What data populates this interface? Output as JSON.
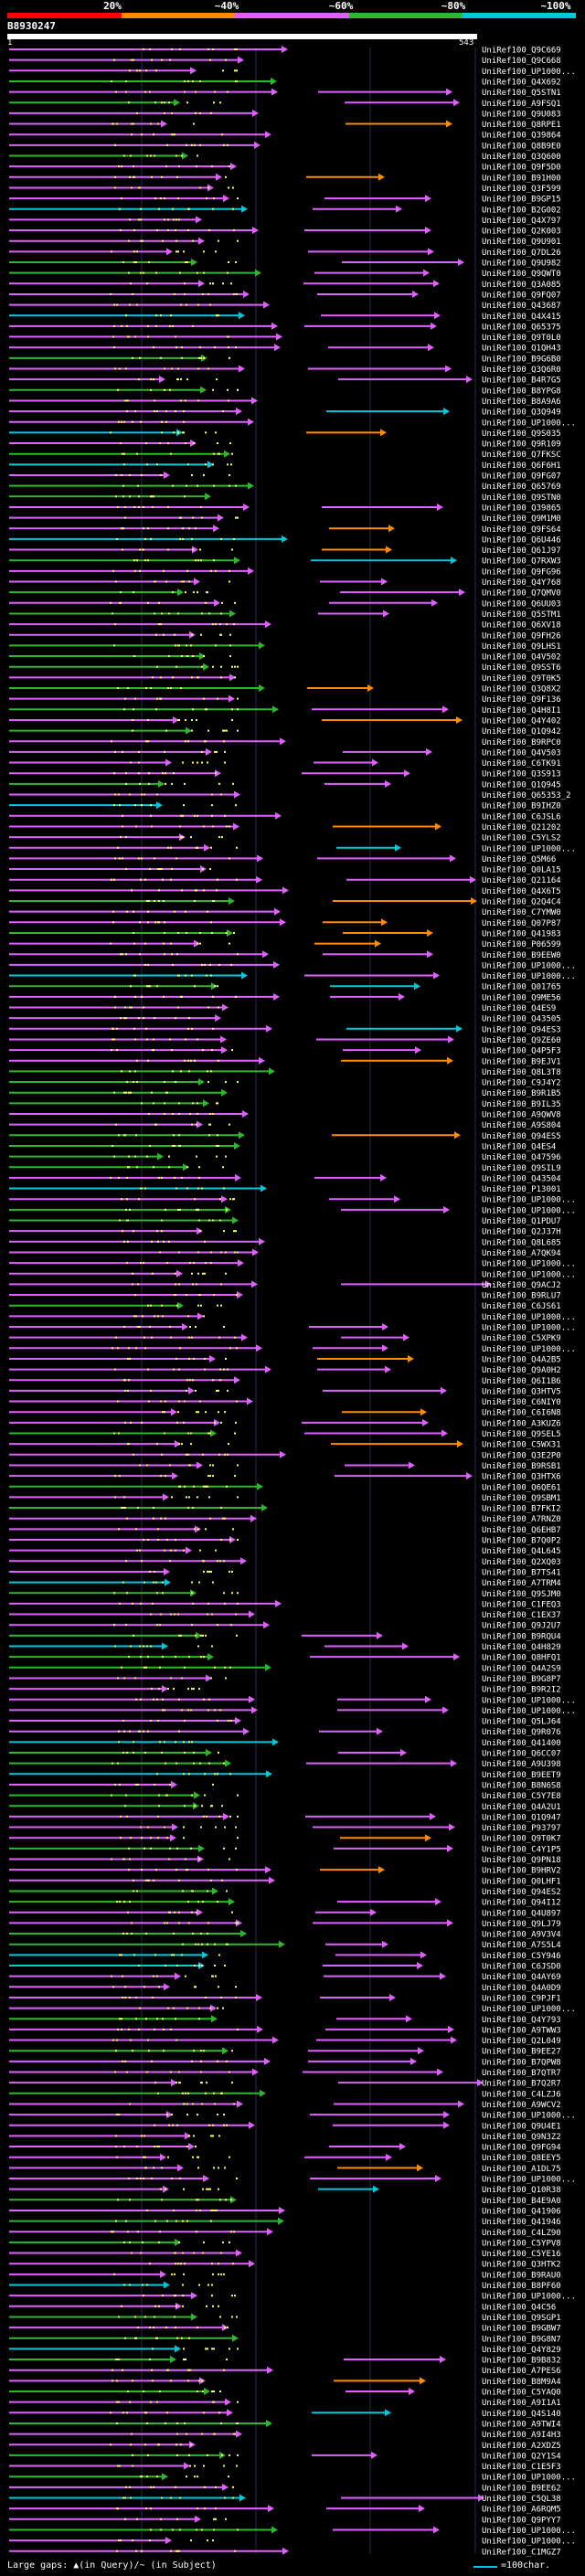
{
  "legend": {
    "labels": [
      "20%",
      "~40%",
      "~60%",
      "~80%",
      "~100%"
    ],
    "colors": {
      "red": "#ff0000",
      "orange": "#ff8c00",
      "violet": "#e060ff",
      "green": "#2cb82c",
      "cyan": "#00c8dc",
      "yellow": "#ffff66"
    }
  },
  "query": {
    "id": "B8930247",
    "range_start": "1",
    "range_end": "543"
  },
  "hits": [
    "UniRef100_Q9C669",
    "UniRef100_Q9C668",
    "UniRef100_UP1000...",
    "UniRef100_Q4X692",
    "UniRef100_Q5STN1",
    "UniRef100_A9FSQ1",
    "UniRef100_Q9U083",
    "UniRef100_Q8RPE1",
    "UniRef100_Q39864",
    "UniRef100_Q8B9E0",
    "UniRef100_Q3Q600",
    "UniRef100_Q9F5D0",
    "UniRef100_B91H00",
    "UniRef100_Q3F599",
    "UniRef100_B9GP15",
    "UniRef100_B2G002",
    "UniRef100_Q4X797",
    "UniRef100_Q2K003",
    "UniRef100_Q9U901",
    "UniRef100_Q7DL26",
    "UniRef100_Q9U982",
    "UniRef100_Q9QWT0",
    "UniRef100_Q3A085",
    "UniRef100_Q9FQ07",
    "UniRef100_Q43687",
    "UniRef100_Q4X415",
    "UniRef100_Q65375",
    "UniRef100_Q9T0L0",
    "UniRef100_Q1QH43",
    "UniRef100_B9G6B0",
    "UniRef100_Q3Q6R0",
    "UniRef100_B4R7G5",
    "UniRef100_B8YPG8",
    "UniRef100_B8A9A6",
    "UniRef100_Q3Q949",
    "UniRef100_UP1000...",
    "UniRef100_Q9S035",
    "UniRef100_Q9R109",
    "UniRef100_Q7FKSC",
    "UniRef100_Q6F6H1",
    "UniRef100_Q9FG07",
    "UniRef100_Q65769",
    "UniRef100_Q9STN0",
    "UniRef100_Q39865",
    "UniRef100_Q9M1M0",
    "UniRef100_Q9FS64",
    "UniRef100_Q6U446",
    "UniRef100_Q61J97",
    "UniRef100_Q7RXW3",
    "UniRef100_Q9FG96",
    "UniRef100_Q4Y768",
    "UniRef100_Q7QMV0",
    "UniRef100_Q6UU03",
    "UniRef100_Q5STM1",
    "UniRef100_Q6XV18",
    "UniRef100_Q9FH26",
    "UniRef100_Q9LHS1",
    "UniRef100_Q4V502",
    "UniRef100_Q9SST6",
    "UniRef100_Q9T0K5",
    "UniRef100_Q3Q8X2",
    "UniRef100_Q9F136",
    "UniRef100_Q4H8I1",
    "UniRef100_Q4Y402",
    "UniRef100_Q1Q942",
    "UniRef100_B9RPC0",
    "UniRef100_Q4V503",
    "UniRef100_C6TK91",
    "UniRef100_Q3S913",
    "UniRef100_Q1Q945",
    "UniRef100_Q65353_2",
    "UniRef100_B9IHZ0",
    "UniRef100_C6JSL6",
    "UniRef100_Q21202",
    "UniRef100_C5YLS2",
    "UniRef100_UP1000...",
    "UniRef100_Q5M66",
    "UniRef100_Q0LA15",
    "UniRef100_Q21164",
    "UniRef100_Q4X6T5",
    "UniRef100_Q2Q4C4",
    "UniRef100_C7YMW0",
    "UniRef100_Q07P87",
    "UniRef100_Q41983",
    "UniRef100_P06599",
    "UniRef100_B9EEW0",
    "UniRef100_UP1000...",
    "UniRef100_UP1000...",
    "UniRef100_Q01765",
    "UniRef100_Q9ME56",
    "UniRef100_Q4ES9",
    "UniRef100_Q43505",
    "UniRef100_Q94ES3",
    "UniRef100_Q9ZE60",
    "UniRef100_Q4P5F3",
    "UniRef100_B9EJV1",
    "UniRef100_Q8L3T8",
    "UniRef100_C9J4Y2",
    "UniRef100_B9R1B5",
    "UniRef100_B9IL35",
    "UniRef100_A9QWV8",
    "UniRef100_A9S804",
    "UniRef100_Q94ES5",
    "UniRef100_Q4ES4",
    "UniRef100_Q47596",
    "UniRef100_Q9SIL9",
    "UniRef100_Q43504",
    "UniRef100_P13001",
    "UniRef100_UP1000...",
    "UniRef100_UP1000...",
    "UniRef100_Q1PDU7",
    "UniRef100_Q2J37H",
    "UniRef100_Q8L685",
    "UniRef100_A7QK94",
    "UniRef100_UP1000...",
    "UniRef100_UP1000...",
    "UniRef100_Q9ACJ2",
    "UniRef100_B9RLU7",
    "UniRef100_C6JS61",
    "UniRef100_UP1000...",
    "UniRef100_UP1000...",
    "UniRef100_C5XPK9",
    "UniRef100_UP1000...",
    "UniRef100_Q4A2B5",
    "UniRef100_Q9A0H2",
    "UniRef100_Q6I1B6",
    "UniRef100_Q3HTV5",
    "UniRef100_C6NIY0",
    "UniRef100_C6I6N8",
    "UniRef100_A3KUZ6",
    "UniRef100_Q9SEL5",
    "UniRef100_C5WX31",
    "UniRef100_Q3E2P0",
    "UniRef100_B9RSB1",
    "UniRef100_Q3HTX6",
    "UniRef100_Q6QE61",
    "UniRef100_Q9SBM1",
    "UniRef100_B7FKI2",
    "UniRef100_A7RNZ0",
    "UniRef100_Q6EHB7",
    "UniRef100_B7Q0P2",
    "UniRef100_Q4L645",
    "UniRef100_Q2XQ03",
    "UniRef100_B7TS41",
    "UniRef100_A7TRM4",
    "UniRef100_Q9SJM0",
    "UniRef100_C1FEQ3",
    "UniRef100_C1EX37",
    "UniRef100_Q9J2U7",
    "UniRef100_B9RQU4",
    "UniRef100_Q4H829",
    "UniRef100_Q8HFQ1",
    "UniRef100_Q4A2S9",
    "UniRef100_B9G8P7",
    "UniRef100_B9R2I2",
    "UniRef100_UP1000...",
    "UniRef100_UP1000...",
    "UniRef100_Q5LJ64",
    "UniRef100_Q9R076",
    "UniRef100_Q41400",
    "UniRef100_Q6CC07",
    "UniRef100_A9U398",
    "UniRef100_B9EET9",
    "UniRef100_B8N6S8",
    "UniRef100_C5Y7E8",
    "UniRef100_Q4A2U1",
    "UniRef100_Q1Q947",
    "UniRef100_P93797",
    "UniRef100_Q9T0K7",
    "UniRef100_C4Y1P5",
    "UniRef100_Q9PN18",
    "UniRef100_B9HRV2",
    "UniRef100_Q0LHF1",
    "UniRef100_Q94ES2",
    "UniRef100_Q94I12",
    "UniRef100_Q4U897",
    "UniRef100_Q9LJ79",
    "UniRef100_A9V3V4",
    "UniRef100_A7S5L4",
    "UniRef100_C5Y946",
    "UniRef100_C6JSD0",
    "UniRef100_Q4AY69",
    "UniRef100_Q4A0D9",
    "UniRef100_C9PJF1",
    "UniRef100_UP1000...",
    "UniRef100_Q4Y793",
    "UniRef100_A9TWW3",
    "UniRef100_Q2L049",
    "UniRef100_B9EE27",
    "UniRef100_B7QPW8",
    "UniRef100_B7QTR7",
    "UniRef100_B7Q2R7",
    "UniRef100_C4LZJ6",
    "UniRef100_A9WCV2",
    "UniRef100_UP1000...",
    "UniRef100_Q9U4E1",
    "UniRef100_Q9N3Z2",
    "UniRef100_Q9FG94",
    "UniRef100_Q8EEY5",
    "UniRef100_A1DL75",
    "UniRef100_UP1000...",
    "UniRef100_Q10R38",
    "UniRef100_B4E9A0",
    "UniRef100_Q41906",
    "UniRef100_Q41946",
    "UniRef100_C4LZ90",
    "UniRef100_C5YPV8",
    "UniRef100_C5YE16",
    "UniRef100_Q3HTK2",
    "UniRef100_B9RAU0",
    "UniRef100_B8PF60",
    "UniRef100_UP1000...",
    "UniRef100_Q4C56",
    "UniRef100_Q9SGP1",
    "UniRef100_B9GBW7",
    "UniRef100_B9G8N7",
    "UniRef100_Q4Y829",
    "UniRef100_B9B832",
    "UniRef100_A7PES6",
    "UniRef100_B8M9A4",
    "UniRef100_C5YAQ0",
    "UniRef100_A9I1A1",
    "UniRef100_Q4S140",
    "UniRef100_A9TWI4",
    "UniRef100_A9I4H3",
    "UniRef100_A2XDZ5",
    "UniRef100_Q2Y1S4",
    "UniRef100_C1E5F3",
    "UniRef100_UP1000...",
    "UniRef100_B9EE62",
    "UniRef100_C5QL38",
    "UniRef100_A6RQM5",
    "UniRef100_Q9PYY7",
    "UniRef100_UP1000...",
    "UniRef100_UP1000...",
    "UniRef100_C1MGZ7",
    "UniRef100_Q9M9P3"
  ],
  "footer": {
    "gaps_label": "Large gaps: ▲(in Query)/~ (in Subject)",
    "scale_label": "=100char."
  }
}
